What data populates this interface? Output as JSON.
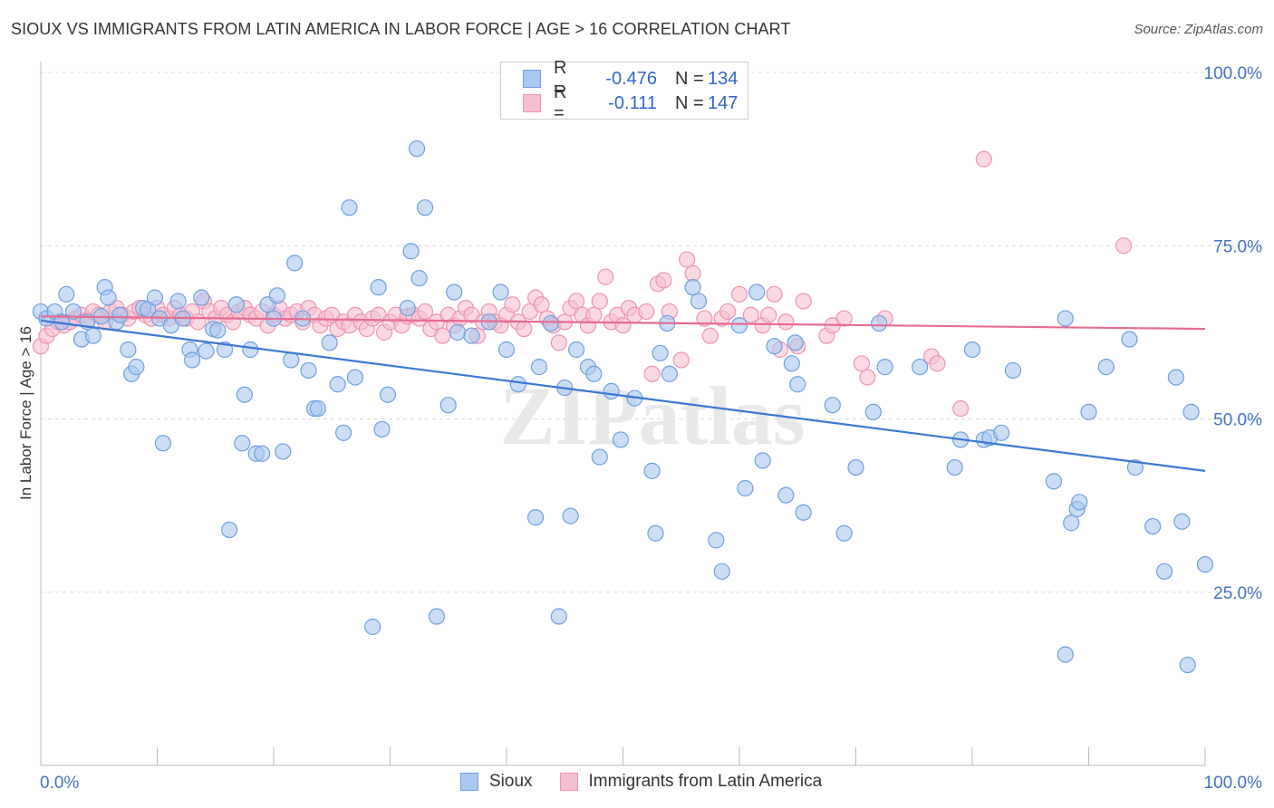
{
  "title": "SIOUX VS IMMIGRANTS FROM LATIN AMERICA IN LABOR FORCE | AGE > 16 CORRELATION CHART",
  "source": "Source: ZipAtlas.com",
  "watermark": "ZIPatlas",
  "colors": {
    "sioux_fill": "#a9c8f0",
    "sioux_stroke": "#6f9fe0",
    "sioux_line": "#3a78d4",
    "latin_fill": "#f6bfd0",
    "latin_stroke": "#ef93b2",
    "latin_line": "#e56b93",
    "tick_label": "#4472c4",
    "grid": "#d8d8d8"
  },
  "legend": {
    "rows": [
      {
        "r_label": "R =",
        "r_value": "-0.476",
        "n_label": "N =",
        "n_value": "134"
      },
      {
        "r_label": "R =",
        "r_value": "-0.111",
        "n_label": "N =",
        "n_value": "147"
      }
    ]
  },
  "bottom_legend": [
    "Sioux",
    "Immigrants from Latin America"
  ],
  "chart_data": {
    "type": "scatter",
    "xlabel": "",
    "ylabel": "In Labor Force | Age > 16",
    "xlim": [
      0,
      100
    ],
    "ylim": [
      0,
      100
    ],
    "x_tick_labels": [
      "0.0%",
      "100.0%"
    ],
    "y_tick_labels": [
      "25.0%",
      "50.0%",
      "75.0%",
      "100.0%"
    ],
    "y_ticks": [
      25,
      50,
      75,
      100
    ],
    "grid": true,
    "legend_position": "top-center",
    "series": [
      {
        "name": "Sioux",
        "trend": {
          "x": [
            0,
            100
          ],
          "y": [
            64.2,
            42.5
          ]
        },
        "points": [
          [
            0,
            65.5
          ],
          [
            0.5,
            64.5
          ],
          [
            1.2,
            65.5
          ],
          [
            1.8,
            64
          ],
          [
            2.2,
            68
          ],
          [
            2.8,
            65.5
          ],
          [
            3.5,
            61.5
          ],
          [
            4,
            64
          ],
          [
            4.5,
            62
          ],
          [
            5.2,
            64.8
          ],
          [
            5.5,
            69
          ],
          [
            5.8,
            67.5
          ],
          [
            6.5,
            64
          ],
          [
            6.8,
            65
          ],
          [
            7.5,
            60
          ],
          [
            7.8,
            56.5
          ],
          [
            8.2,
            57.5
          ],
          [
            8.8,
            66
          ],
          [
            9.2,
            65.8
          ],
          [
            9.8,
            67.5
          ],
          [
            10.2,
            64.5
          ],
          [
            10.5,
            46.5
          ],
          [
            11.2,
            63.5
          ],
          [
            11.8,
            67
          ],
          [
            12.2,
            64.5
          ],
          [
            12.8,
            60
          ],
          [
            13,
            58.5
          ],
          [
            13.8,
            67.5
          ],
          [
            14.2,
            59.8
          ],
          [
            14.8,
            63
          ],
          [
            15.2,
            62.8
          ],
          [
            15.8,
            60
          ],
          [
            16.2,
            34
          ],
          [
            16.8,
            66.5
          ],
          [
            17.3,
            46.5
          ],
          [
            17.5,
            53.5
          ],
          [
            18,
            60
          ],
          [
            18.5,
            45
          ],
          [
            19,
            45
          ],
          [
            19.5,
            66.5
          ],
          [
            20,
            64.5
          ],
          [
            20.3,
            67.8
          ],
          [
            20.8,
            45.3
          ],
          [
            21.5,
            58.5
          ],
          [
            21.8,
            72.5
          ],
          [
            22.5,
            64.5
          ],
          [
            23,
            57
          ],
          [
            23.5,
            51.5
          ],
          [
            23.8,
            51.5
          ],
          [
            24.8,
            61
          ],
          [
            25.5,
            55
          ],
          [
            26,
            48
          ],
          [
            26.5,
            80.5
          ],
          [
            27,
            56
          ],
          [
            28.5,
            20
          ],
          [
            29,
            69
          ],
          [
            29.3,
            48.5
          ],
          [
            29.8,
            53.5
          ],
          [
            31.5,
            66
          ],
          [
            31.8,
            74.2
          ],
          [
            32.3,
            89
          ],
          [
            32.5,
            70.3
          ],
          [
            33,
            80.5
          ],
          [
            34,
            21.5
          ],
          [
            35,
            52
          ],
          [
            35.5,
            68.3
          ],
          [
            35.8,
            62.5
          ],
          [
            37,
            62
          ],
          [
            38.5,
            64
          ],
          [
            39.5,
            68.3
          ],
          [
            40,
            60
          ],
          [
            41,
            55
          ],
          [
            42.5,
            35.8
          ],
          [
            42.8,
            57.5
          ],
          [
            43.8,
            63.8
          ],
          [
            44.5,
            21.5
          ],
          [
            45,
            54.5
          ],
          [
            45.5,
            36
          ],
          [
            46,
            60
          ],
          [
            47,
            57.5
          ],
          [
            47.5,
            56.5
          ],
          [
            48,
            44.5
          ],
          [
            49,
            54
          ],
          [
            49.8,
            47
          ],
          [
            51,
            53
          ],
          [
            52.5,
            42.5
          ],
          [
            52.8,
            33.5
          ],
          [
            53.2,
            59.5
          ],
          [
            53.8,
            63.8
          ],
          [
            54,
            56.5
          ],
          [
            56,
            69
          ],
          [
            56.5,
            67
          ],
          [
            58,
            32.5
          ],
          [
            58.5,
            28
          ],
          [
            60,
            63.5
          ],
          [
            60.5,
            40
          ],
          [
            61.5,
            68.3
          ],
          [
            62,
            44
          ],
          [
            63,
            60.5
          ],
          [
            64,
            39
          ],
          [
            64.5,
            58
          ],
          [
            64.8,
            61
          ],
          [
            65,
            55
          ],
          [
            65.5,
            36.5
          ],
          [
            68,
            52
          ],
          [
            69,
            33.5
          ],
          [
            70,
            43
          ],
          [
            71.5,
            51
          ],
          [
            72,
            63.8
          ],
          [
            72.5,
            57.5
          ],
          [
            75.5,
            57.5
          ],
          [
            78.5,
            43
          ],
          [
            79,
            47
          ],
          [
            80,
            60
          ],
          [
            81,
            47
          ],
          [
            81.5,
            47.3
          ],
          [
            82.5,
            48
          ],
          [
            83.5,
            57
          ],
          [
            87,
            41
          ],
          [
            88,
            64.5
          ],
          [
            88,
            16
          ],
          [
            88.5,
            35
          ],
          [
            89,
            37
          ],
          [
            89.2,
            38
          ],
          [
            90,
            51
          ],
          [
            91.5,
            57.5
          ],
          [
            93.5,
            61.5
          ],
          [
            94,
            43
          ],
          [
            95.5,
            34.5
          ],
          [
            96.5,
            28
          ],
          [
            97.5,
            56
          ],
          [
            98,
            35.2
          ],
          [
            98.5,
            14.5
          ],
          [
            98.8,
            51
          ],
          [
            100,
            29
          ]
        ]
      },
      {
        "name": "Immigrants from Latin America",
        "trend": {
          "x": [
            0,
            100
          ],
          "y": [
            64.8,
            63.0
          ]
        },
        "points": [
          [
            0,
            60.5
          ],
          [
            0.5,
            62
          ],
          [
            1,
            63
          ],
          [
            1.5,
            64
          ],
          [
            2,
            63.5
          ],
          [
            2.5,
            64
          ],
          [
            3,
            64.5
          ],
          [
            3.5,
            65
          ],
          [
            4,
            64.3
          ],
          [
            4.5,
            65.5
          ],
          [
            5,
            65
          ],
          [
            5.5,
            64
          ],
          [
            6,
            65.5
          ],
          [
            6.5,
            66
          ],
          [
            7,
            65
          ],
          [
            7.5,
            64.5
          ],
          [
            8,
            65.5
          ],
          [
            8.5,
            66
          ],
          [
            9,
            65
          ],
          [
            9.5,
            64.5
          ],
          [
            10,
            66
          ],
          [
            10.5,
            65
          ],
          [
            11,
            64.5
          ],
          [
            11.5,
            66
          ],
          [
            12,
            65
          ],
          [
            12.5,
            64.5
          ],
          [
            13,
            65.5
          ],
          [
            13.5,
            64
          ],
          [
            14,
            67
          ],
          [
            14.5,
            65.5
          ],
          [
            15,
            64.5
          ],
          [
            15.5,
            66
          ],
          [
            16,
            65
          ],
          [
            16.5,
            64
          ],
          [
            17,
            65.5
          ],
          [
            17.5,
            66
          ],
          [
            18,
            65
          ],
          [
            18.5,
            64.5
          ],
          [
            19,
            65.5
          ],
          [
            19.5,
            63.5
          ],
          [
            20,
            65
          ],
          [
            20.5,
            66
          ],
          [
            21,
            64.5
          ],
          [
            21.5,
            65
          ],
          [
            22,
            65.5
          ],
          [
            22.5,
            64
          ],
          [
            23,
            66
          ],
          [
            23.5,
            65
          ],
          [
            24,
            63.5
          ],
          [
            24.5,
            64.5
          ],
          [
            25,
            65
          ],
          [
            25.5,
            63
          ],
          [
            26,
            64
          ],
          [
            26.5,
            63.5
          ],
          [
            27,
            65
          ],
          [
            27.5,
            64
          ],
          [
            28,
            63
          ],
          [
            28.5,
            64.5
          ],
          [
            29,
            65
          ],
          [
            29.5,
            62.5
          ],
          [
            30,
            64
          ],
          [
            30.5,
            65
          ],
          [
            31,
            63.5
          ],
          [
            31.5,
            64.8
          ],
          [
            32,
            65
          ],
          [
            32.5,
            64.5
          ],
          [
            33,
            65.5
          ],
          [
            33.5,
            63
          ],
          [
            34,
            64
          ],
          [
            34.5,
            62
          ],
          [
            35,
            65
          ],
          [
            35.5,
            63.5
          ],
          [
            36,
            64.5
          ],
          [
            36.5,
            66
          ],
          [
            37,
            65
          ],
          [
            37.5,
            62
          ],
          [
            38,
            64
          ],
          [
            38.5,
            65.5
          ],
          [
            39,
            64
          ],
          [
            39.5,
            63.5
          ],
          [
            40,
            65
          ],
          [
            40.5,
            66.5
          ],
          [
            41,
            64
          ],
          [
            41.5,
            63
          ],
          [
            42,
            65.5
          ],
          [
            42.5,
            67.5
          ],
          [
            43,
            66.5
          ],
          [
            43.5,
            64.5
          ],
          [
            44,
            63.5
          ],
          [
            44.5,
            61
          ],
          [
            45,
            64
          ],
          [
            45.5,
            66
          ],
          [
            46,
            67
          ],
          [
            46.5,
            65
          ],
          [
            47,
            63.5
          ],
          [
            47.5,
            65
          ],
          [
            48,
            67
          ],
          [
            48.5,
            70.5
          ],
          [
            49,
            64
          ],
          [
            49.5,
            65
          ],
          [
            50,
            63.5
          ],
          [
            50.5,
            66
          ],
          [
            51,
            65
          ],
          [
            52,
            65.5
          ],
          [
            52.5,
            56.5
          ],
          [
            53,
            69.5
          ],
          [
            53.5,
            70
          ],
          [
            54,
            65.5
          ],
          [
            55,
            58.5
          ],
          [
            55.5,
            73
          ],
          [
            56,
            71
          ],
          [
            57,
            64.5
          ],
          [
            57.5,
            62
          ],
          [
            58.5,
            64.5
          ],
          [
            59,
            65.5
          ],
          [
            60,
            68
          ],
          [
            61,
            65
          ],
          [
            62,
            63.5
          ],
          [
            62.5,
            65
          ],
          [
            63,
            68
          ],
          [
            63.5,
            60
          ],
          [
            64,
            64
          ],
          [
            65,
            60.5
          ],
          [
            65.5,
            67
          ],
          [
            67.5,
            62
          ],
          [
            68,
            63.5
          ],
          [
            69,
            64.5
          ],
          [
            70.5,
            58
          ],
          [
            71,
            56
          ],
          [
            72.5,
            64.5
          ],
          [
            76.5,
            59
          ],
          [
            77,
            58
          ],
          [
            79,
            51.5
          ],
          [
            81,
            87.5
          ],
          [
            93,
            75
          ]
        ]
      }
    ]
  }
}
